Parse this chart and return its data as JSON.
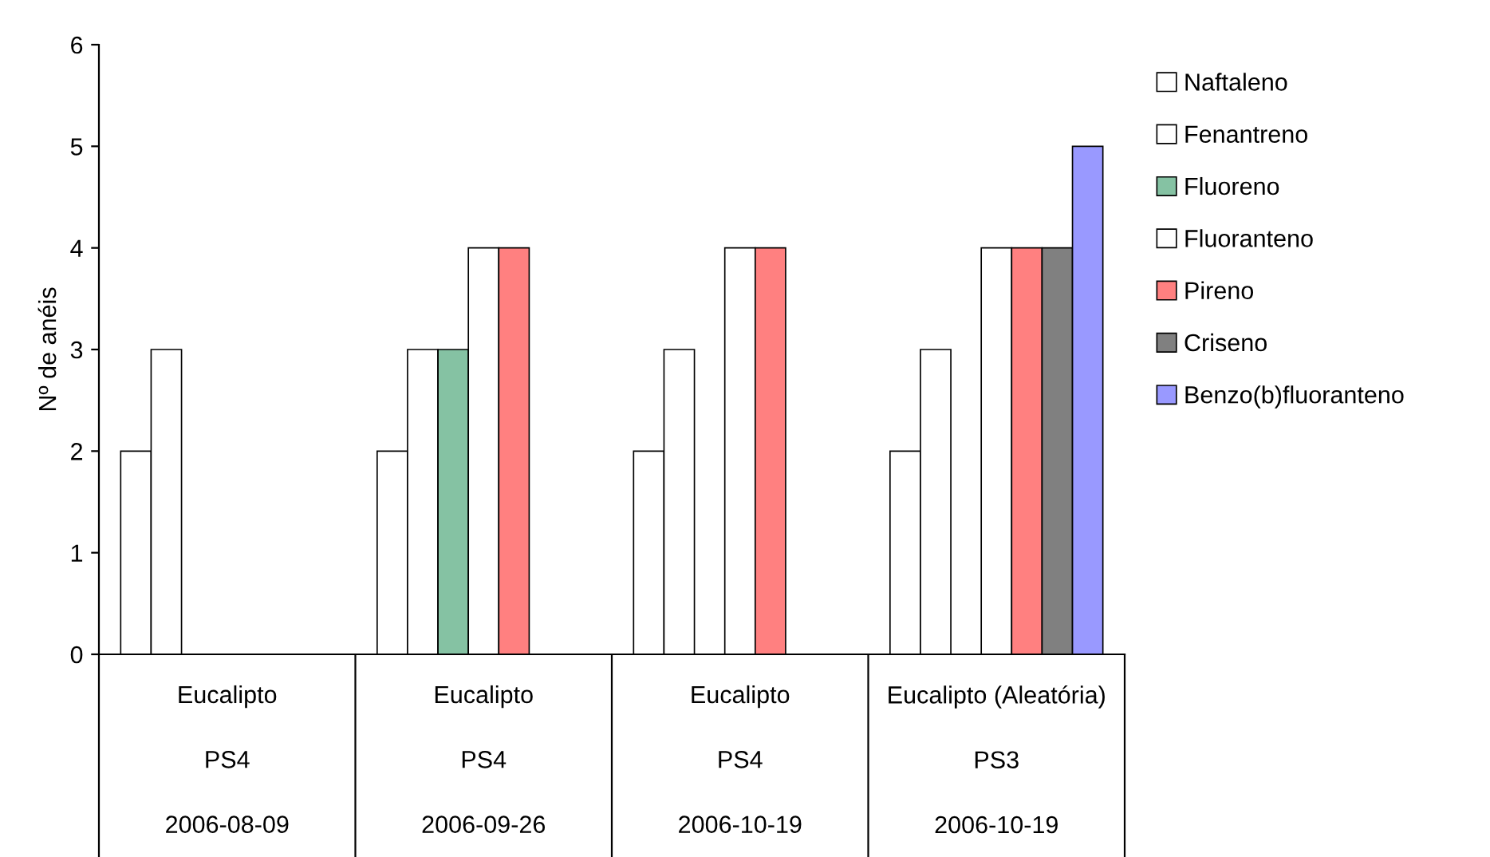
{
  "chart_data": {
    "type": "bar",
    "ylabel": "Nº de anéis",
    "categories": [
      "Eucalipto\nPS4\n2006-08-09",
      "Eucalipto\nPS4\n2006-09-26",
      "Eucalipto\nPS4\n2006-10-19",
      "Eucalipto (Aleatória)\nPS3\n2006-10-19"
    ],
    "series": [
      {
        "name": "Naftaleno",
        "color": "#ffffff",
        "values": [
          2,
          2,
          2,
          2
        ]
      },
      {
        "name": "Fenantreno",
        "color": "#ffffff",
        "values": [
          3,
          3,
          3,
          3
        ]
      },
      {
        "name": "Fluoreno",
        "color": "#339966",
        "values": [
          null,
          3,
          null,
          null
        ]
      },
      {
        "name": "Fluoranteno",
        "color": "#ffffff",
        "values": [
          null,
          4,
          4,
          4
        ]
      },
      {
        "name": "Pireno",
        "color": "#ff8080",
        "values": [
          null,
          4,
          4,
          4
        ]
      },
      {
        "name": "Criseno",
        "color": "#808080",
        "values": [
          null,
          null,
          null,
          4
        ]
      },
      {
        "name": "Benzo(b)fluoranteno",
        "color": "#9999ff",
        "values": [
          null,
          null,
          null,
          5
        ]
      }
    ],
    "ylim": [
      0,
      6
    ],
    "yticks": [
      0,
      1,
      2,
      3,
      4,
      5,
      6
    ],
    "grid": false,
    "legend": "right"
  }
}
